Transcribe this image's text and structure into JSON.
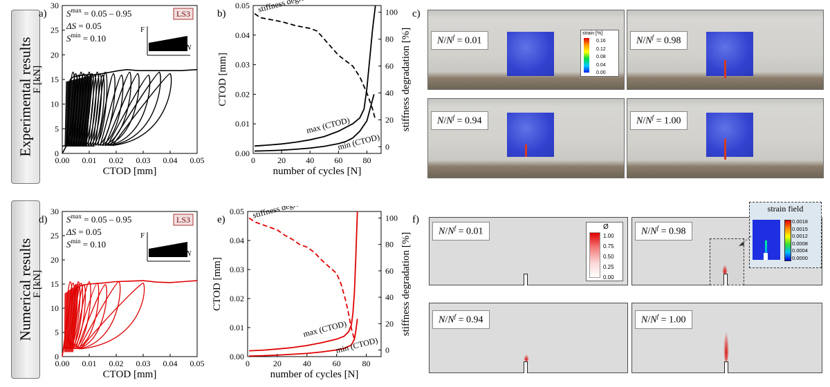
{
  "rows": {
    "experimental_label": "Experimental results",
    "numerical_label": "Numerical results"
  },
  "panels": {
    "a": "a)",
    "b": "b)",
    "c": "c)",
    "d": "d)",
    "e": "e)",
    "f": "f)"
  },
  "loading_info": {
    "smax_sym": "S",
    "smax_sup": "max",
    "smax_val": "= 0.05 – 0.95",
    "ds_sym": "ΔS",
    "ds_val": "= 0.05",
    "smin_sym": "S",
    "smin_sup": "min",
    "smin_val": "= 0.10",
    "badge": "LS3",
    "inset_F": "F",
    "inset_N": "N"
  },
  "snapshots": {
    "labels": [
      "0.01",
      "0.98",
      "0.94",
      "1.00"
    ],
    "prefix_N": "N",
    "prefix_sep": "/",
    "prefix_Nf": "N",
    "prefix_sup": "f",
    "prefix_eq": " = "
  },
  "exp_colorbar": {
    "title": "strain [%]",
    "ticks": [
      "0.16",
      "0.12",
      "0.08",
      "0.04",
      "0.00"
    ]
  },
  "num_colorbar": {
    "title": "Ø",
    "ticks": [
      "1.00",
      "0.75",
      "0.50",
      "0.25",
      "0.00"
    ]
  },
  "strain_field": {
    "title": "strain field",
    "ticks": [
      "0.0018",
      "0.0015",
      "0.0012",
      "0.0008",
      "0.0004",
      "0.0000"
    ]
  },
  "colors": {
    "experimental": "#000000",
    "numerical": "#e00000"
  },
  "chart_data": [
    {
      "id": "a",
      "type": "line",
      "xlabel": "CTOD [mm]",
      "ylabel": "F [kN]",
      "xlim": [
        0,
        0.05
      ],
      "ylim": [
        0,
        30
      ],
      "xticks": [
        "0.00",
        "0.01",
        "0.02",
        "0.03",
        "0.04",
        "0.05"
      ],
      "yticks": [
        "0",
        "5",
        "10",
        "15",
        "20",
        "25",
        "30"
      ],
      "series": [
        {
          "x": [
            0,
            0.002,
            0.0025,
            0.003,
            0.004,
            0.006,
            0.01,
            0.013,
            0.015,
            0.018,
            0.021,
            0.024,
            0.028,
            0.032,
            0.036,
            0.04,
            0.044,
            0.05
          ],
          "y": [
            0,
            2,
            14,
            15,
            15.5,
            15.8,
            16,
            16,
            16.2,
            16.5,
            16.8,
            17,
            16.8,
            16.8,
            16.8,
            16.8,
            16.8,
            17
          ]
        }
      ]
    },
    {
      "id": "b",
      "type": "line",
      "xlabel": "number of cycles [N]",
      "ylabel": "CTOD [mm]",
      "y2label": "stiffness degradation [%]",
      "xlim": [
        0,
        90
      ],
      "ylim": [
        0,
        0.05
      ],
      "y2lim": [
        -5,
        105
      ],
      "xticks": [
        "0",
        "20",
        "40",
        "60",
        "80"
      ],
      "yticks": [
        "0.00",
        "0.01",
        "0.02",
        "0.03",
        "0.04",
        "0.05"
      ],
      "y2ticks": [
        "0",
        "20",
        "40",
        "60",
        "80",
        "100"
      ],
      "annotations": [
        "stiffness degradation",
        "max (CTOD)",
        "min (CTOD)"
      ],
      "series": [
        {
          "x": [
            1,
            10,
            20,
            30,
            40,
            50,
            60,
            70,
            75,
            78,
            80,
            82,
            84,
            86
          ],
          "y": [
            0.0025,
            0.0028,
            0.0032,
            0.0038,
            0.0046,
            0.0057,
            0.0075,
            0.01,
            0.012,
            0.015,
            0.022,
            0.032,
            0.042,
            0.05
          ]
        },
        {
          "x": [
            1,
            10,
            20,
            30,
            40,
            50,
            60,
            65,
            70,
            75,
            80,
            85
          ],
          "y": [
            0.0008,
            0.0009,
            0.0011,
            0.0014,
            0.0018,
            0.0024,
            0.0033,
            0.004,
            0.0052,
            0.0075,
            0.011,
            0.02
          ]
        },
        {
          "x": [
            1,
            5,
            10,
            20,
            30,
            40,
            45,
            50,
            55,
            60,
            65,
            70,
            75,
            80,
            84,
            86
          ],
          "y2": [
            99,
            96,
            95,
            93,
            90,
            88,
            86,
            80,
            74,
            68,
            64,
            60,
            52,
            40,
            28,
            20
          ]
        }
      ]
    },
    {
      "id": "d",
      "type": "line",
      "xlabel": "CTOD [mm]",
      "ylabel": "F [kN]",
      "xlim": [
        0,
        0.05
      ],
      "ylim": [
        0,
        30
      ],
      "xticks": [
        "0.00",
        "0.01",
        "0.02",
        "0.03",
        "0.04",
        "0.05"
      ],
      "yticks": [
        "0",
        "5",
        "10",
        "15",
        "20",
        "25",
        "30"
      ],
      "series": [
        {
          "x": [
            0,
            0.001,
            0.003,
            0.005,
            0.007,
            0.01,
            0.015,
            0.02,
            0.025,
            0.03,
            0.035,
            0.04,
            0.045,
            0.05
          ],
          "y": [
            0,
            4,
            12,
            14,
            14.7,
            15,
            15.2,
            15.5,
            15.6,
            15.7,
            15.4,
            15.3,
            15.5,
            15.7
          ]
        }
      ]
    },
    {
      "id": "e",
      "type": "line",
      "xlabel": "number of cycles [N]",
      "ylabel": "CTOD [mm]",
      "y2label": "stiffness degradation [%]",
      "xlim": [
        0,
        90
      ],
      "ylim": [
        0,
        0.05
      ],
      "y2lim": [
        -5,
        105
      ],
      "xticks": [
        "0",
        "20",
        "40",
        "60",
        "80"
      ],
      "yticks": [
        "0.00",
        "0.01",
        "0.02",
        "0.03",
        "0.04",
        "0.05"
      ],
      "y2ticks": [
        "0",
        "20",
        "40",
        "60",
        "80",
        "100"
      ],
      "annotations": [
        "stiffness degradation",
        "max (CTOD)",
        "min (CTOD)"
      ],
      "series": [
        {
          "x": [
            1,
            10,
            20,
            30,
            40,
            50,
            60,
            65,
            68,
            70,
            71,
            72,
            73,
            74
          ],
          "y": [
            0.002,
            0.0022,
            0.0026,
            0.0031,
            0.0038,
            0.0048,
            0.006,
            0.007,
            0.0085,
            0.011,
            0.015,
            0.022,
            0.035,
            0.05
          ]
        },
        {
          "x": [
            1,
            10,
            20,
            30,
            40,
            50,
            60,
            65,
            70,
            72,
            73,
            74
          ],
          "y": [
            0.0002,
            0.0003,
            0.0005,
            0.0008,
            0.0011,
            0.0016,
            0.0023,
            0.0028,
            0.004,
            0.006,
            0.009,
            0.013
          ]
        },
        {
          "x": [
            1,
            5,
            10,
            15,
            20,
            25,
            30,
            35,
            40,
            45,
            50,
            55,
            60,
            63,
            66,
            68,
            70,
            72
          ],
          "y2": [
            100,
            97,
            95,
            93,
            91,
            87,
            84,
            80,
            78,
            74,
            68,
            63,
            58,
            50,
            38,
            28,
            16,
            8
          ]
        }
      ]
    }
  ]
}
